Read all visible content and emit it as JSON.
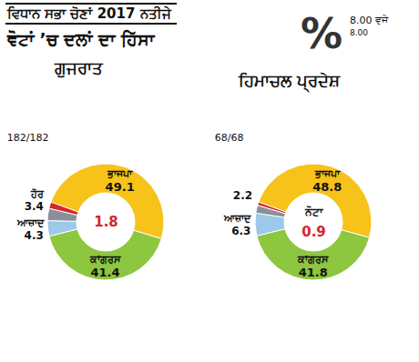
{
  "header": {
    "title": "ਵਿਧਾਨ ਸਭਾ ਚੋਣਾਂ 2017 ਨਤੀਜੇ",
    "subtitle": "ਵੋਟਾਂ ’ਚ ਦਲਾਂ ਦਾ ਹਿੱਸਾ",
    "symbol": "%",
    "time": "8.00 ਵਜੇ",
    "time_small": "8.00"
  },
  "chart_data": [
    {
      "type": "pie",
      "title": "ਗੁਜਰਾਤ",
      "subtitle": "182/182",
      "categories": [
        "ਭਾਜਪਾ",
        "ਕਾਂਗਰਸ",
        "ਆਜ਼ਾਦ",
        "ਹੋਰ",
        null
      ],
      "values": [
        49.1,
        41.4,
        4.3,
        3.4,
        1.8
      ],
      "colors": [
        "#f7c21a",
        "#8dc63f",
        "#9cc8ea",
        "#8a8f99",
        "#d7262b"
      ],
      "data_labels": true
    },
    {
      "type": "pie",
      "title": "ਹਿਮਾਚਲ ਪ੍ਰਦੇਸ਼",
      "subtitle": "68/68",
      "categories": [
        "ਭਾਜਪਾ",
        "ਕਾਂਗਰਸ",
        "ਆਜ਼ਾਦ",
        null,
        "ਨੋਟਾ"
      ],
      "values": [
        48.8,
        41.8,
        6.3,
        2.2,
        0.9
      ],
      "colors": [
        "#f7c21a",
        "#8dc63f",
        "#9cc8ea",
        "#8a8f99",
        "#d7262b"
      ],
      "data_labels": true
    }
  ]
}
